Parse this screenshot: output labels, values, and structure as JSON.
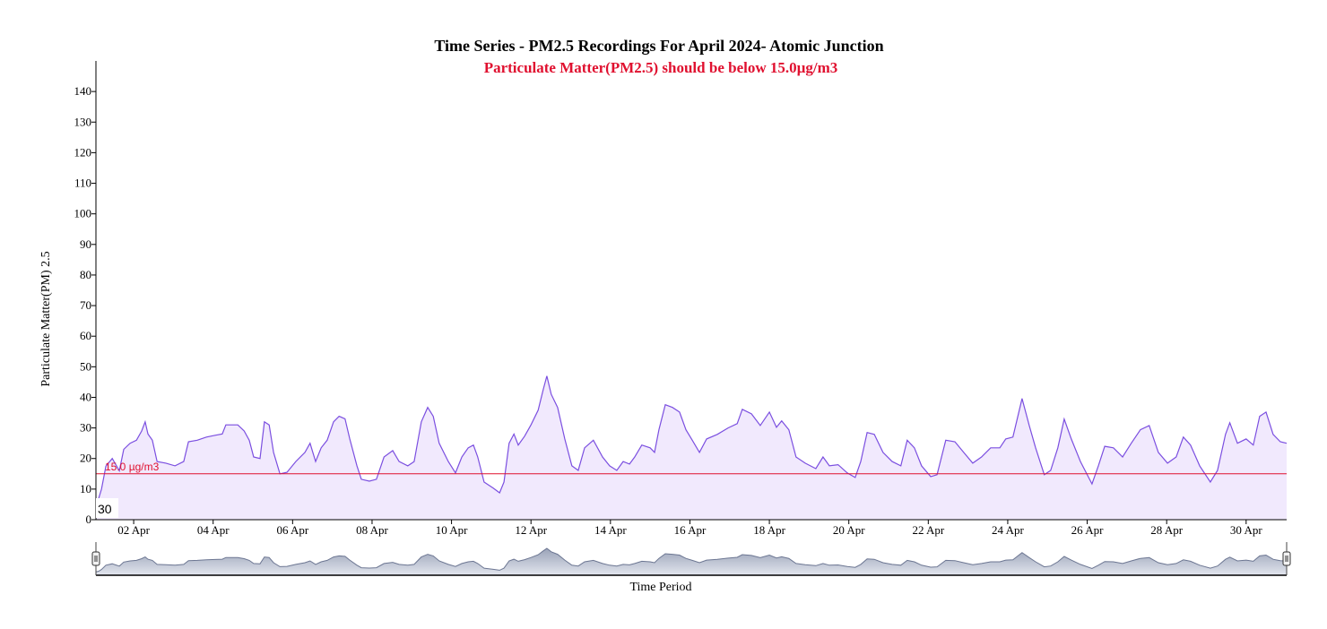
{
  "chart_data": {
    "type": "area",
    "title": "Time Series - PM2.5 Recordings For April 2024- Atomic Junction",
    "subtitle": "Particulate Matter(PM2.5) should be below 15.0µg/m3",
    "x_label": "Time Period",
    "y_label": "Particulate Matter(PM) 2.5",
    "cursor_label": "30",
    "threshold": {
      "value": 15,
      "label": "15.0 µg/m3",
      "color": "#e0102f"
    },
    "color": "#7b4fe0",
    "fill": "#f1e9fd",
    "brush_color": "#9aa3b8",
    "xlim": [
      1.05,
      31.02
    ],
    "ylim": [
      0,
      150
    ],
    "xticks": [
      {
        "value": 2,
        "label": "02 Apr"
      },
      {
        "value": 4,
        "label": "04 Apr"
      },
      {
        "value": 6,
        "label": "06 Apr"
      },
      {
        "value": 8,
        "label": "08 Apr"
      },
      {
        "value": 10,
        "label": "10 Apr"
      },
      {
        "value": 12,
        "label": "12 Apr"
      },
      {
        "value": 14,
        "label": "14 Apr"
      },
      {
        "value": 16,
        "label": "16 Apr"
      },
      {
        "value": 18,
        "label": "18 Apr"
      },
      {
        "value": 20,
        "label": "20 Apr"
      },
      {
        "value": 22,
        "label": "22 Apr"
      },
      {
        "value": 24,
        "label": "24 Apr"
      },
      {
        "value": 26,
        "label": "26 Apr"
      },
      {
        "value": 28,
        "label": "28 Apr"
      },
      {
        "value": 30,
        "label": "30 Apr"
      }
    ],
    "yticks": [
      0,
      10,
      20,
      30,
      40,
      50,
      60,
      70,
      80,
      90,
      100,
      110,
      120,
      130,
      140
    ],
    "x": [
      1.05,
      1.12,
      1.19,
      1.3,
      1.46,
      1.64,
      1.75,
      1.91,
      2.07,
      2.2,
      2.29,
      2.36,
      2.47,
      2.59,
      2.81,
      3.04,
      3.26,
      3.38,
      3.6,
      3.83,
      4.05,
      4.23,
      4.32,
      4.62,
      4.78,
      4.91,
      5.02,
      5.18,
      5.29,
      5.41,
      5.52,
      5.68,
      5.86,
      6.08,
      6.31,
      6.44,
      6.58,
      6.72,
      6.87,
      7.03,
      7.17,
      7.32,
      7.44,
      7.62,
      7.73,
      7.93,
      8.11,
      8.3,
      8.52,
      8.68,
      8.9,
      9.06,
      9.24,
      9.4,
      9.54,
      9.69,
      9.92,
      10.1,
      10.26,
      10.42,
      10.55,
      10.66,
      10.82,
      11.05,
      11.21,
      11.32,
      11.45,
      11.57,
      11.68,
      11.84,
      12.0,
      12.18,
      12.31,
      12.4,
      12.51,
      12.67,
      12.85,
      13.03,
      13.19,
      13.35,
      13.57,
      13.8,
      13.98,
      14.16,
      14.32,
      14.48,
      14.61,
      14.79,
      15.0,
      15.11,
      15.22,
      15.38,
      15.56,
      15.74,
      15.9,
      16.06,
      16.24,
      16.42,
      16.69,
      16.96,
      17.19,
      17.32,
      17.55,
      17.77,
      18.0,
      18.18,
      18.31,
      18.49,
      18.67,
      18.9,
      19.17,
      19.35,
      19.51,
      19.73,
      19.96,
      20.16,
      20.3,
      20.46,
      20.64,
      20.86,
      21.09,
      21.31,
      21.47,
      21.65,
      21.83,
      22.06,
      22.22,
      22.44,
      22.67,
      22.89,
      23.12,
      23.34,
      23.57,
      23.8,
      23.95,
      24.13,
      24.36,
      24.54,
      24.7,
      24.92,
      25.08,
      25.26,
      25.42,
      25.6,
      25.83,
      26.12,
      26.28,
      26.44,
      26.66,
      26.89,
      27.11,
      27.34,
      27.56,
      27.79,
      28.02,
      28.24,
      28.42,
      28.6,
      28.83,
      29.1,
      29.28,
      29.48,
      29.59,
      29.78,
      30.0,
      30.18,
      30.34,
      30.5,
      30.68,
      30.86,
      31.02
    ],
    "values": [
      6,
      7,
      10,
      17.5,
      20,
      16,
      23,
      25,
      26,
      29,
      32,
      28,
      26,
      19,
      18.5,
      17.6,
      19,
      25.5,
      26,
      27,
      27.6,
      28,
      31,
      31,
      29,
      26,
      20.5,
      20,
      32,
      31,
      22,
      15,
      15.5,
      19,
      22,
      25,
      19,
      23.5,
      26,
      32,
      33.8,
      33,
      26.4,
      17.6,
      13.2,
      12.6,
      13.2,
      20.5,
      22.6,
      19,
      17.6,
      19,
      32,
      36.7,
      33.8,
      25,
      19,
      15.3,
      20.5,
      23.5,
      24.4,
      20.5,
      12.3,
      10.3,
      8.8,
      12.3,
      25,
      28,
      24.4,
      27.3,
      31,
      35.8,
      42.6,
      47,
      41,
      36.7,
      26.4,
      17.6,
      16.1,
      23.5,
      26,
      20.5,
      17.6,
      16.1,
      19,
      18.2,
      20.5,
      24.4,
      23.5,
      22,
      29.4,
      37.6,
      36.7,
      35.2,
      29.4,
      26,
      22,
      26.4,
      27.9,
      30,
      31.4,
      36.1,
      34.6,
      30.8,
      35.2,
      30.2,
      32.3,
      29.4,
      20.5,
      18.5,
      16.7,
      20.5,
      17.6,
      18,
      15.3,
      13.8,
      19,
      28.5,
      27.9,
      22,
      19,
      17.6,
      26,
      23.5,
      17.6,
      14.1,
      14.7,
      26,
      25.5,
      22,
      18.5,
      20.5,
      23.5,
      23.5,
      26.4,
      27,
      39.6,
      30.8,
      23.5,
      14.7,
      16.1,
      23.5,
      32.9,
      26.4,
      19,
      11.7,
      17.6,
      24,
      23.5,
      20.5,
      25,
      29.4,
      30.8,
      22,
      18.5,
      20.5,
      27,
      24.4,
      17.6,
      12.3,
      16.1,
      27.9,
      31.7,
      25,
      26.4,
      24.4,
      33.8,
      35.2,
      27.9,
      25.5,
      25
    ]
  }
}
